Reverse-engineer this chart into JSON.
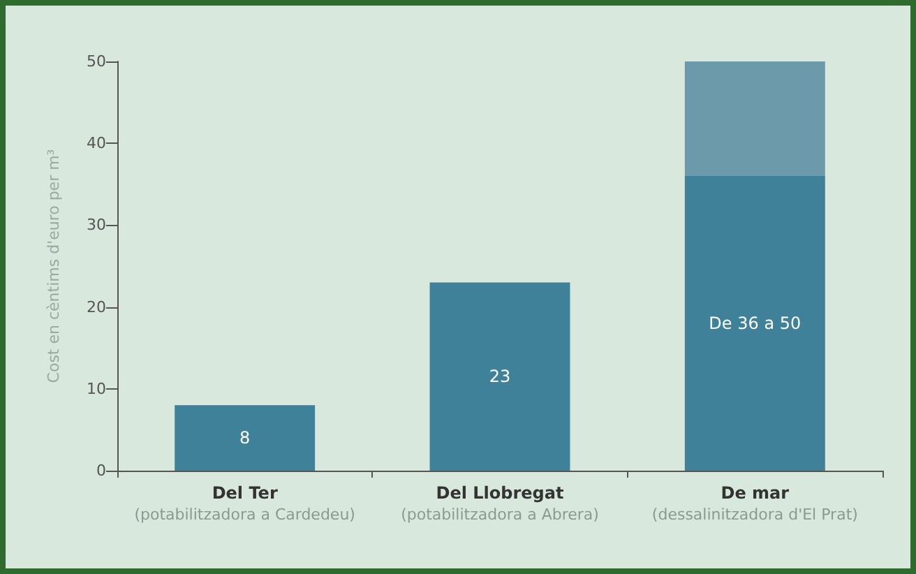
{
  "chart_data": {
    "type": "bar",
    "stacked": true,
    "ylabel": "Cost en cèntims d'euro per m³",
    "categories": [
      "Del Ter\n(potabilitzadora a Cardedeu)",
      "Del Llobregat\n(potabilitzadora a Abrera)",
      "De mar\n(dessalinitzadora d'El Prat)"
    ],
    "series": [
      {
        "color": "#3f8199",
        "values": [
          8,
          23,
          36
        ],
        "value_labels": [
          "8",
          "23",
          "De 36 a 50"
        ]
      },
      {
        "color": "#6c9aaa",
        "values": [
          null,
          null,
          14
        ]
      }
    ],
    "ylim": [
      0,
      50
    ],
    "yticks": [
      0,
      10,
      20,
      30,
      40,
      50
    ],
    "grid": false
  }
}
